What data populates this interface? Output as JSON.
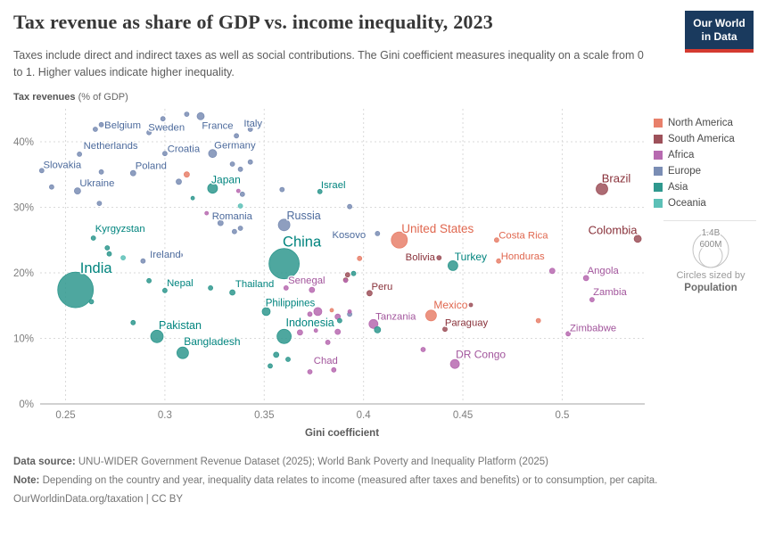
{
  "chart_data": {
    "type": "scatter",
    "title": "Tax revenue as share of GDP vs. income inequality, 2023",
    "subtitle": "Taxes include direct and indirect taxes as well as social contributions. The Gini coefficient measures inequality on a scale from 0 to 1. Higher values indicate higher inequality.",
    "xlabel": "Gini coefficient",
    "ylabel": "Tax revenues",
    "ylabel_unit": " (% of GDP)",
    "xlim": [
      0.2372,
      0.5411
    ],
    "ylim": [
      0,
      45.3
    ],
    "grid": "dashed",
    "x_ticks": [
      {
        "v": 0.25,
        "label": "0.25"
      },
      {
        "v": 0.3,
        "label": "0.3"
      },
      {
        "v": 0.35,
        "label": "0.35"
      },
      {
        "v": 0.4,
        "label": "0.4"
      },
      {
        "v": 0.45,
        "label": "0.45"
      },
      {
        "v": 0.5,
        "label": "0.5"
      }
    ],
    "y_ticks": [
      {
        "v": 0,
        "label": "0%"
      },
      {
        "v": 10,
        "label": "10%"
      },
      {
        "v": 20,
        "label": "20%"
      },
      {
        "v": 30,
        "label": "30%"
      },
      {
        "v": 40,
        "label": "40%"
      }
    ],
    "series": [
      {
        "name": "North America",
        "color": "#e8806b",
        "label_color": "#e0674f",
        "points": [
          {
            "name": "United States",
            "gini": 0.418,
            "tax": 25.0,
            "r": 9,
            "label": {
              "dx": 43,
              "dy": -13,
              "size": 13.5
            }
          },
          {
            "name": "Costa Rica",
            "gini": 0.467,
            "tax": 25.0,
            "r": 2.5,
            "label": {
              "dx": 30,
              "dy": -6
            }
          },
          {
            "name": "Honduras",
            "gini": 0.468,
            "tax": 21.8,
            "r": 2.5,
            "label": {
              "dx": 27,
              "dy": -6
            }
          },
          {
            "name": "Mexico",
            "gini": 0.434,
            "tax": 13.5,
            "r": 6,
            "label": {
              "dx": 22,
              "dy": -12,
              "size": 12
            }
          },
          {
            "gini": 0.311,
            "tax": 35.0,
            "r": 3
          },
          {
            "gini": 0.384,
            "tax": 14.3,
            "r": 2
          },
          {
            "gini": 0.398,
            "tax": 22.2,
            "r": 2.5
          },
          {
            "gini": 0.488,
            "tax": 12.7,
            "r": 2.5
          }
        ]
      },
      {
        "name": "South America",
        "color": "#9d515a",
        "label_color": "#883039",
        "points": [
          {
            "name": "Brazil",
            "gini": 0.52,
            "tax": 32.8,
            "r": 6.5,
            "label": {
              "dx": 16,
              "dy": -12,
              "size": 13
            }
          },
          {
            "name": "Colombia",
            "gini": 0.538,
            "tax": 25.2,
            "r": 4,
            "label": {
              "dx": -28,
              "dy": -10,
              "size": 13
            }
          },
          {
            "name": "Bolivia",
            "gini": 0.438,
            "tax": 22.3,
            "r": 2.5,
            "label": {
              "dx": -21,
              "dy": -1
            }
          },
          {
            "name": "Peru",
            "gini": 0.403,
            "tax": 16.9,
            "r": 3,
            "label": {
              "dx": 14,
              "dy": -8
            }
          },
          {
            "name": "Paraguay",
            "gini": 0.441,
            "tax": 11.4,
            "r": 2.5,
            "label": {
              "dx": 24,
              "dy": -8
            }
          },
          {
            "gini": 0.392,
            "tax": 19.7,
            "r": 2.5
          },
          {
            "gini": 0.391,
            "tax": 18.9,
            "r": 2.5
          },
          {
            "gini": 0.454,
            "tax": 15.1,
            "r": 2
          }
        ]
      },
      {
        "name": "Africa",
        "color": "#b76ab0",
        "label_color": "#a2559c",
        "points": [
          {
            "name": "Senegal",
            "gini": 0.361,
            "tax": 17.7,
            "r": 2.5,
            "label": {
              "dx": 23,
              "dy": -9
            }
          },
          {
            "name": "Chad",
            "gini": 0.385,
            "tax": 5.2,
            "r": 2.5,
            "label": {
              "dx": -9,
              "dy": -11
            }
          },
          {
            "name": "Tanzania",
            "gini": 0.405,
            "tax": 12.2,
            "r": 5,
            "label": {
              "dx": 25,
              "dy": -9
            }
          },
          {
            "name": "DR Congo",
            "gini": 0.446,
            "tax": 6.1,
            "r": 5,
            "label": {
              "dx": 29,
              "dy": -11,
              "size": 12
            }
          },
          {
            "name": "Angola",
            "gini": 0.512,
            "tax": 19.2,
            "r": 3,
            "label": {
              "dx": 19,
              "dy": -9
            }
          },
          {
            "name": "Zambia",
            "gini": 0.515,
            "tax": 15.9,
            "r": 2.5,
            "label": {
              "dx": 20,
              "dy": -9
            }
          },
          {
            "name": "Zimbabwe",
            "gini": 0.503,
            "tax": 10.7,
            "r": 2.5,
            "label": {
              "dx": 28,
              "dy": -7
            }
          },
          {
            "gini": 0.337,
            "tax": 32.5,
            "r": 2
          },
          {
            "gini": 0.321,
            "tax": 29.1,
            "r": 2
          },
          {
            "gini": 0.374,
            "tax": 17.4,
            "r": 3
          },
          {
            "gini": 0.391,
            "tax": 18.8,
            "r": 2
          },
          {
            "gini": 0.373,
            "tax": 13.7,
            "r": 2.5
          },
          {
            "gini": 0.377,
            "tax": 14.1,
            "r": 4.5
          },
          {
            "gini": 0.387,
            "tax": 13.3,
            "r": 3
          },
          {
            "gini": 0.368,
            "tax": 10.9,
            "r": 3
          },
          {
            "gini": 0.376,
            "tax": 11.2,
            "r": 2
          },
          {
            "gini": 0.387,
            "tax": 11.0,
            "r": 3
          },
          {
            "gini": 0.373,
            "tax": 4.9,
            "r": 2.5
          },
          {
            "gini": 0.382,
            "tax": 9.4,
            "r": 2.5
          },
          {
            "gini": 0.393,
            "tax": 14.1,
            "r": 2
          },
          {
            "gini": 0.495,
            "tax": 20.3,
            "r": 3
          },
          {
            "gini": 0.43,
            "tax": 8.3,
            "r": 2.5
          }
        ]
      },
      {
        "name": "Europe",
        "color": "#7a8db4",
        "label_color": "#4c6a9c",
        "points": [
          {
            "name": "Belgium",
            "gini": 0.268,
            "tax": 42.6,
            "r": 2.5,
            "label": {
              "dx": 24,
              "dy": 0
            }
          },
          {
            "name": "Sweden",
            "gini": 0.299,
            "tax": 43.5,
            "r": 2.5,
            "label": {
              "dx": 4,
              "dy": 9
            }
          },
          {
            "name": "France",
            "gini": 0.318,
            "tax": 43.9,
            "r": 4,
            "label": {
              "dx": 19,
              "dy": 10
            }
          },
          {
            "name": "Italy",
            "gini": 0.343,
            "tax": 41.9,
            "r": 2.5,
            "label": {
              "dx": 3,
              "dy": -7
            }
          },
          {
            "name": "Netherlands",
            "gini": 0.257,
            "tax": 38.1,
            "r": 2.5,
            "label": {
              "dx": 35,
              "dy": -10
            }
          },
          {
            "name": "Croatia",
            "gini": 0.3,
            "tax": 38.2,
            "r": 2.5,
            "label": {
              "dx": 21,
              "dy": -6
            }
          },
          {
            "name": "Germany",
            "gini": 0.324,
            "tax": 38.2,
            "r": 4.5,
            "label": {
              "dx": 25,
              "dy": -10
            }
          },
          {
            "name": "Slovakia",
            "gini": 0.238,
            "tax": 35.6,
            "r": 2.5,
            "label": {
              "dx": 23,
              "dy": -7
            }
          },
          {
            "name": "Poland",
            "gini": 0.284,
            "tax": 35.2,
            "r": 3,
            "label": {
              "dx": 20,
              "dy": -9
            }
          },
          {
            "name": "Ukraine",
            "gini": 0.256,
            "tax": 32.5,
            "r": 3.5,
            "label": {
              "dx": 22,
              "dy": -9
            }
          },
          {
            "name": "Romania",
            "gini": 0.328,
            "tax": 27.6,
            "r": 3,
            "label": {
              "dx": 13,
              "dy": -8
            }
          },
          {
            "name": "Russia",
            "gini": 0.36,
            "tax": 27.3,
            "r": 6.5,
            "label": {
              "dx": 22,
              "dy": -11,
              "size": 12.5
            }
          },
          {
            "name": "Kosovo",
            "gini": 0.407,
            "tax": 26.0,
            "r": 2.5,
            "label": {
              "dx": -32,
              "dy": 1
            }
          },
          {
            "name": "Ireland",
            "gini": 0.289,
            "tax": 21.8,
            "r": 2.5,
            "label": {
              "dx": 25,
              "dy": -8
            }
          },
          {
            "gini": 0.265,
            "tax": 41.9,
            "r": 2.5
          },
          {
            "gini": 0.311,
            "tax": 44.2,
            "r": 2.5
          },
          {
            "gini": 0.336,
            "tax": 40.9,
            "r": 2.5
          },
          {
            "gini": 0.292,
            "tax": 41.4,
            "r": 2.5
          },
          {
            "gini": 0.268,
            "tax": 35.4,
            "r": 2.5
          },
          {
            "gini": 0.243,
            "tax": 33.1,
            "r": 2.5
          },
          {
            "gini": 0.267,
            "tax": 30.6,
            "r": 2.5
          },
          {
            "gini": 0.334,
            "tax": 36.6,
            "r": 2.5
          },
          {
            "gini": 0.338,
            "tax": 35.8,
            "r": 2.5
          },
          {
            "gini": 0.343,
            "tax": 36.9,
            "r": 2.5
          },
          {
            "gini": 0.307,
            "tax": 33.9,
            "r": 3
          },
          {
            "gini": 0.339,
            "tax": 32.0,
            "r": 2.5
          },
          {
            "gini": 0.335,
            "tax": 26.3,
            "r": 2.5
          },
          {
            "gini": 0.338,
            "tax": 26.8,
            "r": 2.5
          },
          {
            "gini": 0.359,
            "tax": 32.7,
            "r": 2.5
          },
          {
            "gini": 0.393,
            "tax": 30.1,
            "r": 2.5
          },
          {
            "gini": 0.308,
            "tax": 22.7,
            "r": 2
          },
          {
            "gini": 0.393,
            "tax": 13.7,
            "r": 2.5
          }
        ]
      },
      {
        "name": "Asia",
        "color": "#2f988e",
        "label_color": "#00847e",
        "points": [
          {
            "name": "India",
            "gini": 0.255,
            "tax": 17.4,
            "r": 20,
            "label": {
              "dx": 23,
              "dy": -25,
              "size": 16.5
            }
          },
          {
            "name": "China",
            "gini": 0.36,
            "tax": 21.4,
            "r": 17,
            "label": {
              "dx": 20,
              "dy": -25,
              "size": 16.5
            }
          },
          {
            "name": "Japan",
            "gini": 0.324,
            "tax": 32.9,
            "r": 5.5,
            "label": {
              "dx": 15,
              "dy": -10,
              "size": 12
            }
          },
          {
            "name": "Israel",
            "gini": 0.378,
            "tax": 32.4,
            "r": 2.5,
            "label": {
              "dx": 15,
              "dy": -8
            }
          },
          {
            "name": "Kyrgyzstan",
            "gini": 0.264,
            "tax": 25.3,
            "r": 2.5,
            "label": {
              "dx": 30,
              "dy": -11
            }
          },
          {
            "name": "Nepal",
            "gini": 0.3,
            "tax": 17.3,
            "r": 2.5,
            "label": {
              "dx": 17,
              "dy": -9
            }
          },
          {
            "name": "Thailand",
            "gini": 0.334,
            "tax": 17.0,
            "r": 3,
            "label": {
              "dx": 25,
              "dy": -10
            }
          },
          {
            "name": "Philippines",
            "gini": 0.351,
            "tax": 14.1,
            "r": 4.5,
            "label": {
              "dx": 27,
              "dy": -10,
              "size": 11.5
            }
          },
          {
            "name": "Pakistan",
            "gini": 0.296,
            "tax": 10.3,
            "r": 7,
            "label": {
              "dx": 26,
              "dy": -13,
              "size": 12.5
            }
          },
          {
            "name": "Indonesia",
            "gini": 0.36,
            "tax": 10.3,
            "r": 8,
            "label": {
              "dx": 29,
              "dy": -16,
              "size": 12.5
            }
          },
          {
            "name": "Bangladesh",
            "gini": 0.309,
            "tax": 7.8,
            "r": 6.5,
            "label": {
              "dx": 33,
              "dy": -13,
              "size": 12
            }
          },
          {
            "name": "Turkey",
            "gini": 0.445,
            "tax": 21.1,
            "r": 5.5,
            "label": {
              "dx": 20,
              "dy": -10,
              "size": 12
            }
          },
          {
            "gini": 0.314,
            "tax": 31.4,
            "r": 2
          },
          {
            "gini": 0.271,
            "tax": 23.8,
            "r": 2.5
          },
          {
            "gini": 0.272,
            "tax": 22.9,
            "r": 2.5
          },
          {
            "gini": 0.292,
            "tax": 18.8,
            "r": 2.5
          },
          {
            "gini": 0.323,
            "tax": 17.7,
            "r": 2.5
          },
          {
            "gini": 0.284,
            "tax": 12.4,
            "r": 2.5
          },
          {
            "gini": 0.263,
            "tax": 15.6,
            "r": 2.5
          },
          {
            "gini": 0.395,
            "tax": 19.9,
            "r": 2.5
          },
          {
            "gini": 0.356,
            "tax": 7.5,
            "r": 3
          },
          {
            "gini": 0.362,
            "tax": 6.8,
            "r": 2.5
          },
          {
            "gini": 0.353,
            "tax": 5.8,
            "r": 2.5
          },
          {
            "gini": 0.407,
            "tax": 11.3,
            "r": 3.5
          },
          {
            "gini": 0.388,
            "tax": 12.7,
            "r": 2.5
          }
        ]
      },
      {
        "name": "Oceania",
        "color": "#5cc0b7",
        "label_color": "#2d8b83",
        "points": [
          {
            "gini": 0.338,
            "tax": 30.2,
            "r": 2.5
          },
          {
            "gini": 0.279,
            "tax": 22.3,
            "r": 2.5
          }
        ]
      }
    ]
  },
  "logo": {
    "line1": "Our World",
    "line2": "in Data"
  },
  "legend": {
    "items": [
      {
        "label": "North America",
        "color": "#e8806b"
      },
      {
        "label": "South America",
        "color": "#9d515a"
      },
      {
        "label": "Africa",
        "color": "#b76ab0"
      },
      {
        "label": "Europe",
        "color": "#7a8db4"
      },
      {
        "label": "Asia",
        "color": "#2f988e"
      },
      {
        "label": "Oceania",
        "color": "#5cc0b7"
      }
    ],
    "size": {
      "big": "1.4B",
      "small": "600M",
      "caption1": "Circles sized by",
      "caption2": "Population"
    }
  },
  "footer": {
    "source_label": "Data source:",
    "source_text": "UNU-WIDER Government Revenue Dataset (2025); World Bank Poverty and Inequality Platform (2025)",
    "note_label": "Note:",
    "note_text": "Depending on the country and year, inequality data relates to income (measured after taxes and benefits) or to consumption, per capita.",
    "url": "OurWorldinData.org/taxation",
    "license_sep": " | ",
    "license": "CC BY"
  }
}
